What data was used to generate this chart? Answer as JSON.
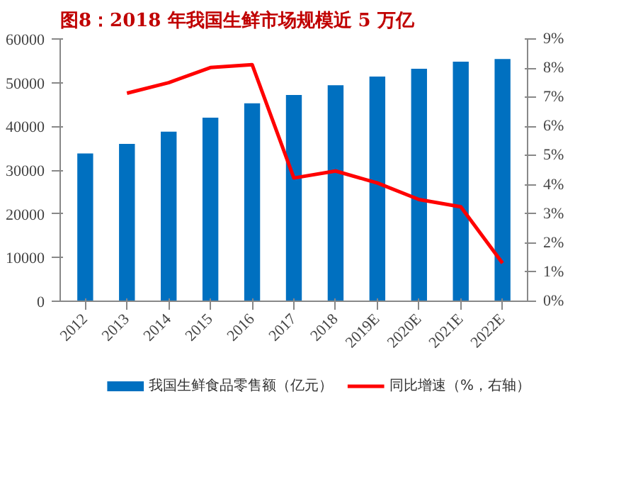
{
  "chart_data": {
    "type": "bar",
    "title": "图8：2018 年我国生鲜市场规模近 5 万亿",
    "categories": [
      "2012",
      "2013",
      "2014",
      "2015",
      "2016",
      "2017",
      "2018",
      "2019E",
      "2020E",
      "2021E",
      "2022E"
    ],
    "series": [
      {
        "name": "我国生鲜食品零售额（亿元）",
        "color": "#0070c0",
        "values": [
          33800,
          36000,
          38800,
          42000,
          45300,
          47200,
          49400,
          51400,
          53200,
          54800,
          55400
        ]
      },
      {
        "name": "同比增速（%，右轴）",
        "type": "line",
        "axis": "y2",
        "color": "#ff0000",
        "values": [
          null,
          7.14,
          7.5,
          8.02,
          8.12,
          4.23,
          4.47,
          4.06,
          3.49,
          3.24,
          1.31
        ]
      }
    ],
    "ylim": [
      0,
      60000
    ],
    "yticks": [
      0,
      10000,
      20000,
      30000,
      40000,
      50000,
      60000
    ],
    "y2lim": [
      0,
      9
    ],
    "y2ticks": [
      {
        "value": 0,
        "label": "0%"
      },
      {
        "value": 1,
        "label": "1%"
      },
      {
        "value": 2,
        "label": "2%"
      },
      {
        "value": 3,
        "label": "3%"
      },
      {
        "value": 4,
        "label": "4%"
      },
      {
        "value": 5,
        "label": "5%"
      },
      {
        "value": 6,
        "label": "6%"
      },
      {
        "value": 7,
        "label": "7%"
      },
      {
        "value": 8,
        "label": "8%"
      },
      {
        "value": 9,
        "label": "9%"
      }
    ],
    "grid": false,
    "legend": "bottom",
    "marker": "none",
    "line_style": "solid"
  }
}
